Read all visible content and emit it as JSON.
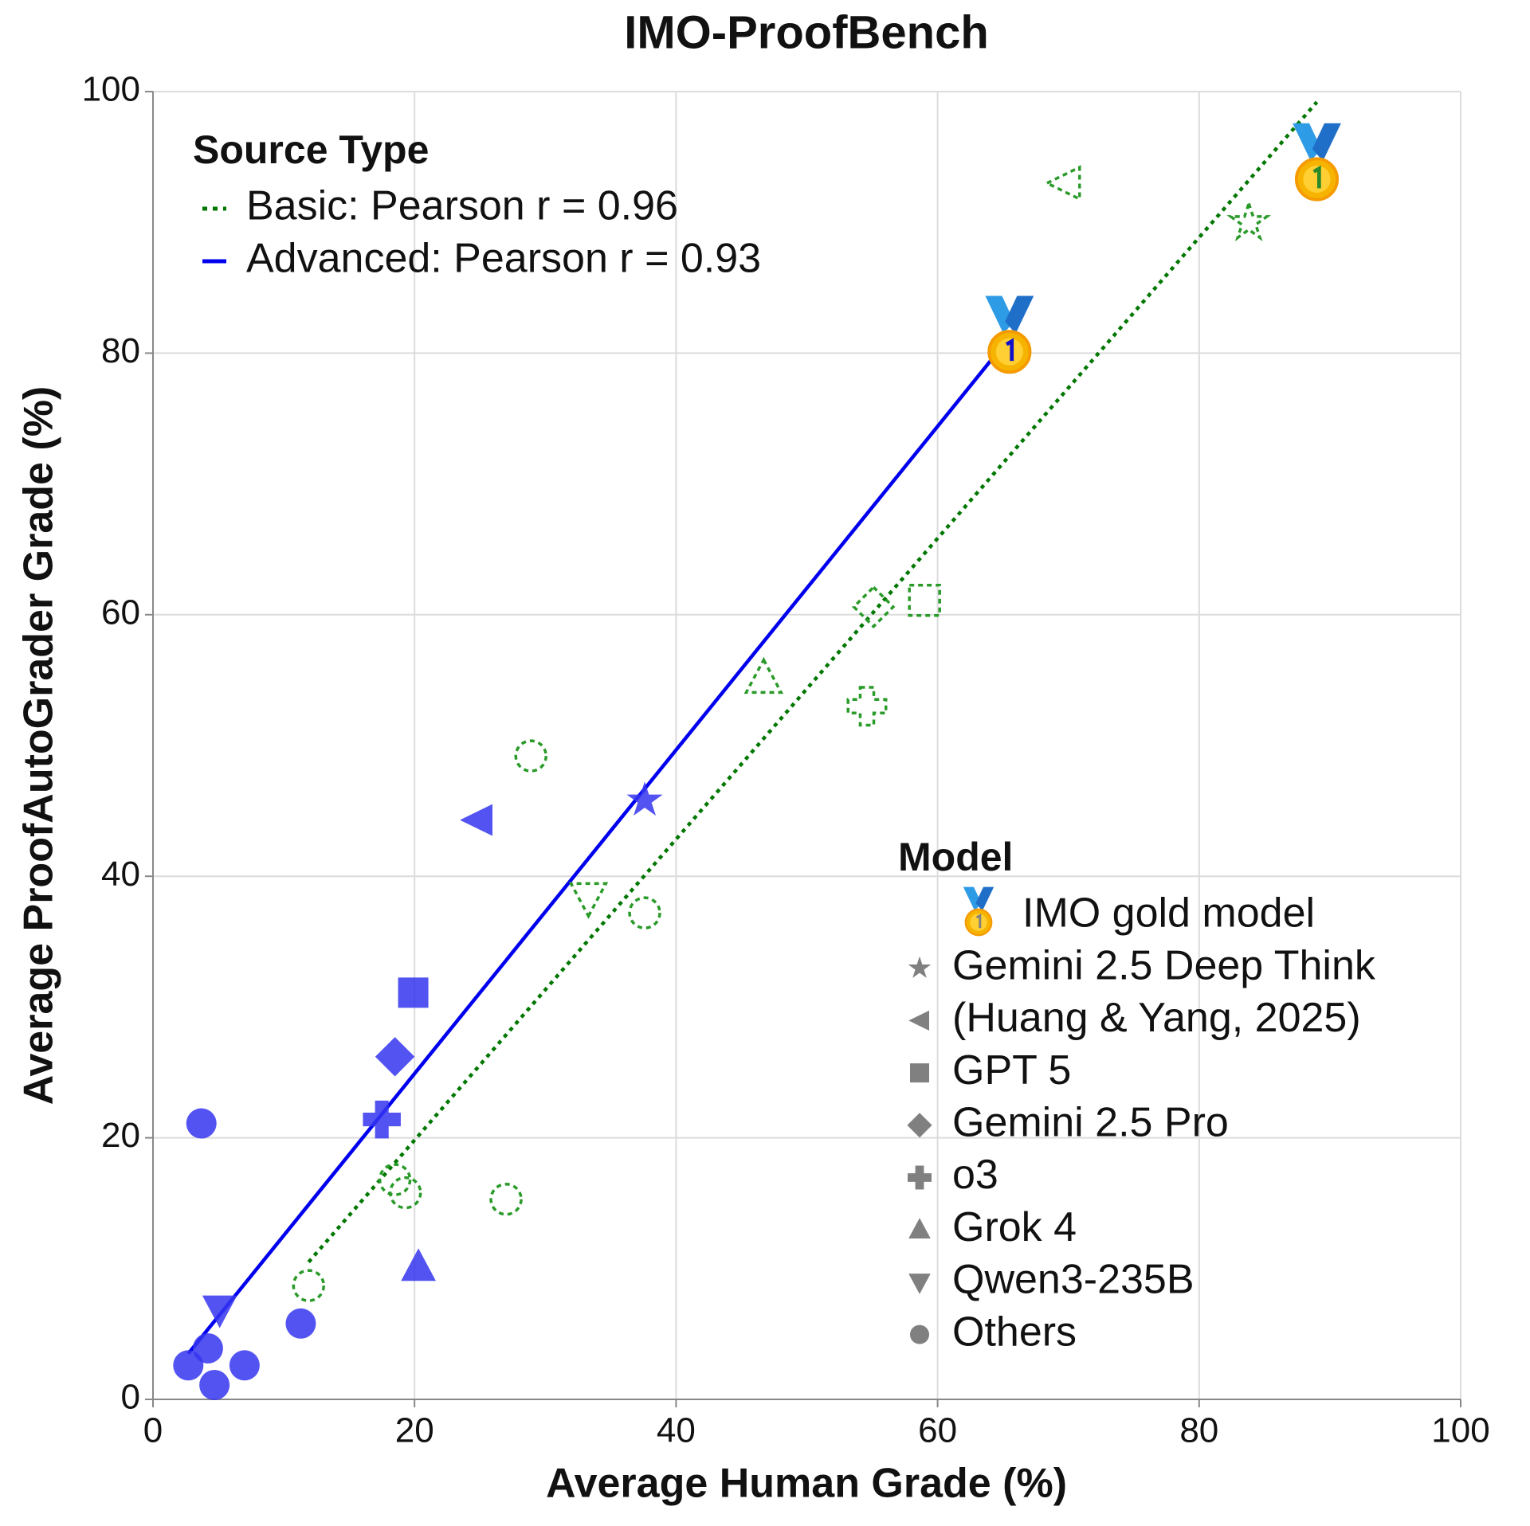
{
  "chart_data": {
    "type": "scatter",
    "title": "IMO-ProofBench",
    "x_label": "Average Human Grade (%)",
    "y_label": "Average ProofAutoGrader Grade (%)",
    "xlim": [
      0,
      100
    ],
    "xticks": [
      0,
      20,
      40,
      60,
      80,
      100
    ],
    "ylim": [
      0,
      100
    ],
    "yticks": [
      0,
      20,
      40,
      60,
      80,
      100
    ],
    "grid": true,
    "source_legend_title": "Source Type",
    "model_legend_title": "Model",
    "models": [
      "IMO gold model",
      "Gemini 2.5 Deep Think",
      "(Huang & Yang, 2025)",
      "GPT 5",
      "Gemini 2.5 Pro",
      "o3",
      "Grok 4",
      "Qwen3-235B",
      "Others"
    ],
    "series": [
      {
        "name": "Basic: Pearson r = 0.96",
        "color": "#2a9a2a",
        "line_color": "#007700",
        "style": "dotted",
        "x": [
          89.0,
          83.8,
          69.7,
          59.0,
          55.1,
          54.6,
          46.7,
          33.3,
          28.9,
          37.6,
          18.5,
          19.3,
          27.0,
          11.9
        ],
        "values": [
          93.3,
          90.0,
          93.0,
          61.1,
          60.6,
          53.0,
          55.1,
          38.4,
          49.2,
          37.2,
          16.8,
          15.8,
          15.3,
          8.7
        ],
        "models": [
          "IMO gold model",
          "Gemini 2.5 Deep Think",
          "(Huang & Yang, 2025)",
          "GPT 5",
          "Gemini 2.5 Pro",
          "o3",
          "Grok 4",
          "Qwen3-235B",
          "Others",
          "Others",
          "Others",
          "Others",
          "Others",
          "Others"
        ],
        "fit": {
          "x": [
            11.9,
            89.0
          ],
          "values": [
            10.5,
            99.2
          ]
        }
      },
      {
        "name": "Advanced: Pearson r = 0.93",
        "color": "#3535f0",
        "line_color": "#0000ee",
        "style": "solid",
        "x": [
          65.5,
          37.6,
          24.8,
          19.9,
          18.5,
          17.5,
          20.3,
          5.1,
          3.7,
          11.3,
          4.2,
          2.7,
          7.0,
          4.7
        ],
        "values": [
          80.1,
          45.8,
          44.3,
          31.1,
          26.2,
          21.4,
          10.1,
          6.9,
          21.1,
          5.8,
          3.9,
          2.6,
          2.6,
          1.1
        ],
        "models": [
          "IMO gold model",
          "Gemini 2.5 Deep Think",
          "(Huang & Yang, 2025)",
          "GPT 5",
          "Gemini 2.5 Pro",
          "o3",
          "Grok 4",
          "Qwen3-235B",
          "Others",
          "Others",
          "Others",
          "Others",
          "Others",
          "Others"
        ],
        "fit": {
          "x": [
            2.7,
            64.2
          ],
          "values": [
            3.5,
            79.6
          ]
        }
      }
    ]
  }
}
